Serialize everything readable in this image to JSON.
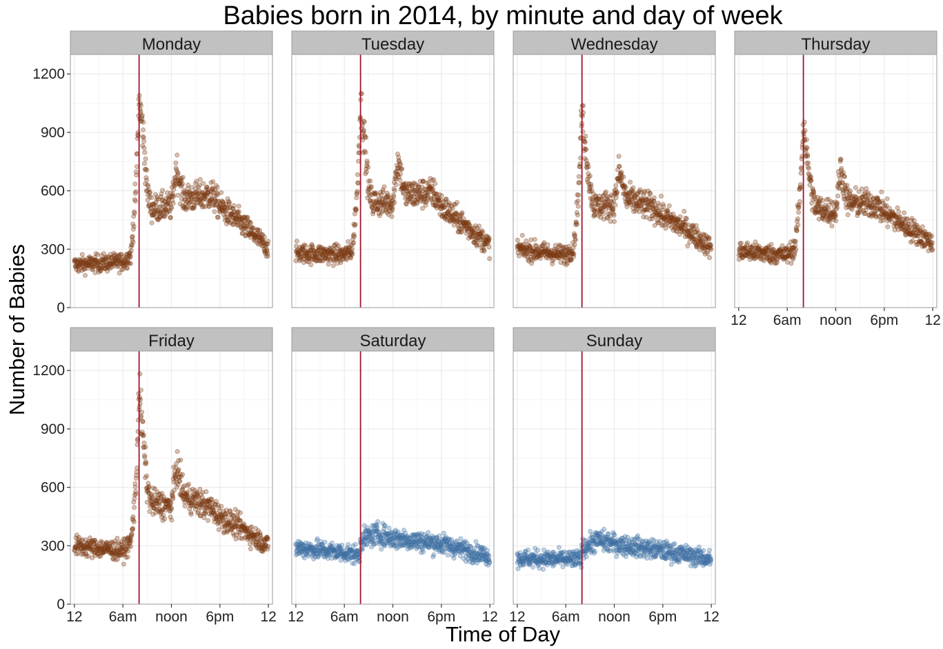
{
  "chart_data": {
    "type": "scatter",
    "title": "Babies born in 2014, by minute and day of week",
    "xlabel": "Time of Day",
    "ylabel": "Number of Babies",
    "ylim": [
      0,
      1300
    ],
    "yticks": [
      0,
      300,
      600,
      900,
      1200
    ],
    "xlim": [
      -0.5,
      24.5
    ],
    "xticks": [
      {
        "value": 0,
        "label": "12"
      },
      {
        "value": 6,
        "label": "6am"
      },
      {
        "value": 12,
        "label": "noon"
      },
      {
        "value": 18,
        "label": "6pm"
      },
      {
        "value": 24,
        "label": "12"
      }
    ],
    "reference_line_hour": 8,
    "grid": true,
    "colors": {
      "weekday_points": "#7b3a14",
      "weekend_points": "#3d6fa3",
      "reference_line": "#a0132b",
      "strip_fill": "#c1c1c1",
      "panel_border": "#9a9a9a",
      "grid": "#ebebeb"
    },
    "panels": [
      {
        "name": "Monday",
        "series": "weekday",
        "profile": [
          [
            0,
            220
          ],
          [
            6,
            235
          ],
          [
            7,
            270
          ],
          [
            7.6,
            600
          ],
          [
            8,
            1060
          ],
          [
            8.5,
            900
          ],
          [
            9,
            600
          ],
          [
            9.5,
            510
          ],
          [
            12,
            520
          ],
          [
            12.6,
            720
          ],
          [
            13.5,
            560
          ],
          [
            17,
            580
          ],
          [
            18,
            520
          ],
          [
            21,
            420
          ],
          [
            24,
            305
          ]
        ]
      },
      {
        "name": "Tuesday",
        "series": "weekday",
        "profile": [
          [
            0,
            280
          ],
          [
            6,
            270
          ],
          [
            7,
            300
          ],
          [
            7.6,
            600
          ],
          [
            8,
            1050
          ],
          [
            8.5,
            860
          ],
          [
            9,
            600
          ],
          [
            9.5,
            540
          ],
          [
            12,
            540
          ],
          [
            12.6,
            760
          ],
          [
            13.5,
            580
          ],
          [
            17,
            590
          ],
          [
            18,
            520
          ],
          [
            21,
            420
          ],
          [
            24,
            320
          ]
        ]
      },
      {
        "name": "Wednesday",
        "series": "weekday",
        "profile": [
          [
            0,
            300
          ],
          [
            6,
            270
          ],
          [
            7,
            310
          ],
          [
            7.6,
            600
          ],
          [
            8,
            1000
          ],
          [
            8.5,
            800
          ],
          [
            9,
            620
          ],
          [
            9.5,
            520
          ],
          [
            12,
            530
          ],
          [
            12.6,
            700
          ],
          [
            13.5,
            560
          ],
          [
            17,
            510
          ],
          [
            18,
            470
          ],
          [
            21,
            400
          ],
          [
            24,
            305
          ]
        ]
      },
      {
        "name": "Thursday",
        "series": "weekday",
        "profile": [
          [
            0,
            290
          ],
          [
            6,
            270
          ],
          [
            7,
            310
          ],
          [
            7.6,
            600
          ],
          [
            8,
            950
          ],
          [
            8.5,
            750
          ],
          [
            9,
            600
          ],
          [
            9.5,
            510
          ],
          [
            12,
            490
          ],
          [
            12.6,
            720
          ],
          [
            13.5,
            540
          ],
          [
            17,
            530
          ],
          [
            18,
            490
          ],
          [
            21,
            410
          ],
          [
            24,
            330
          ]
        ]
      },
      {
        "name": "Friday",
        "series": "weekday",
        "profile": [
          [
            0,
            300
          ],
          [
            6,
            275
          ],
          [
            7,
            320
          ],
          [
            7.6,
            600
          ],
          [
            8,
            1100
          ],
          [
            8.5,
            850
          ],
          [
            9,
            600
          ],
          [
            9.5,
            520
          ],
          [
            12,
            500
          ],
          [
            12.6,
            710
          ],
          [
            13.5,
            560
          ],
          [
            17,
            490
          ],
          [
            18,
            450
          ],
          [
            21,
            380
          ],
          [
            24,
            300
          ]
        ]
      },
      {
        "name": "Saturday",
        "series": "weekend",
        "profile": [
          [
            0,
            290
          ],
          [
            6,
            265
          ],
          [
            7.9,
            250
          ],
          [
            8,
            330
          ],
          [
            10,
            360
          ],
          [
            12,
            340
          ],
          [
            18,
            310
          ],
          [
            24,
            245
          ]
        ]
      },
      {
        "name": "Sunday",
        "series": "weekend",
        "profile": [
          [
            0,
            235
          ],
          [
            6,
            230
          ],
          [
            7.9,
            230
          ],
          [
            8,
            285
          ],
          [
            10,
            330
          ],
          [
            12,
            310
          ],
          [
            18,
            275
          ],
          [
            24,
            230
          ]
        ]
      }
    ]
  }
}
